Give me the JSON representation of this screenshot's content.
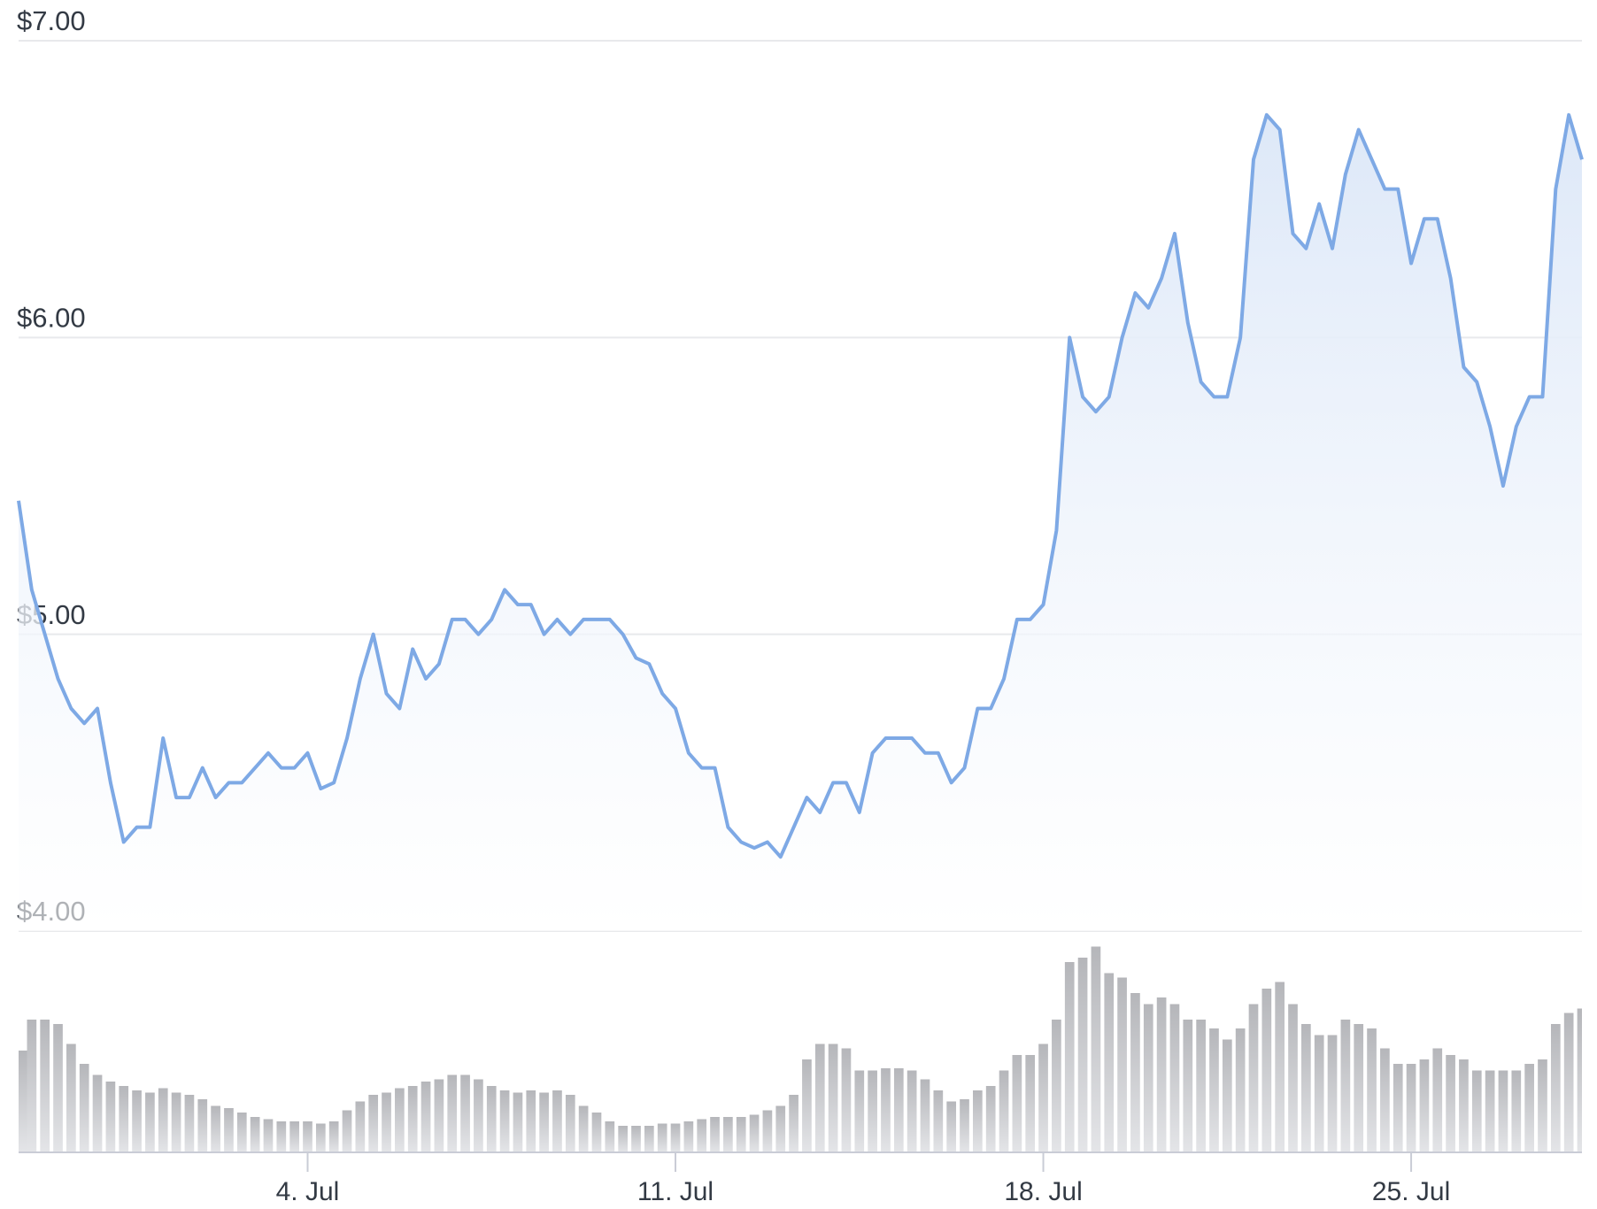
{
  "chart_data": {
    "type": "line",
    "categories": [
      null,
      null,
      null,
      null,
      null,
      null,
      null,
      null,
      null,
      null,
      null,
      null,
      null,
      null,
      null,
      null,
      null,
      null,
      null,
      null,
      null,
      null,
      "4. Jul",
      null,
      null,
      null,
      null,
      null,
      null,
      null,
      null,
      null,
      null,
      null,
      null,
      null,
      null,
      null,
      null,
      null,
      null,
      null,
      null,
      null,
      null,
      null,
      null,
      null,
      null,
      null,
      "11. Jul",
      null,
      null,
      null,
      null,
      null,
      null,
      null,
      null,
      null,
      null,
      null,
      null,
      null,
      null,
      null,
      null,
      null,
      null,
      null,
      null,
      null,
      null,
      null,
      null,
      null,
      null,
      null,
      "18. Jul",
      null,
      null,
      null,
      null,
      null,
      null,
      null,
      null,
      null,
      null,
      null,
      null,
      null,
      null,
      null,
      null,
      null,
      null,
      null,
      null,
      null,
      null,
      null,
      null,
      null,
      null,
      null,
      "25. Jul",
      null,
      null,
      null,
      null,
      null,
      null,
      null,
      null,
      null,
      null,
      null,
      null,
      null
    ],
    "series": [
      {
        "type": "line",
        "color": "#7ea9e5",
        "values": [
          5.45,
          5.15,
          5.0,
          4.85,
          4.75,
          4.7,
          4.75,
          4.5,
          4.3,
          4.35,
          4.35,
          4.65,
          4.45,
          4.45,
          4.55,
          4.45,
          4.5,
          4.5,
          4.55,
          4.6,
          4.55,
          4.55,
          4.6,
          4.48,
          4.5,
          4.65,
          4.85,
          5.0,
          4.8,
          4.75,
          4.95,
          4.85,
          4.9,
          5.05,
          5.05,
          5.0,
          5.05,
          5.15,
          5.1,
          5.1,
          5.0,
          5.05,
          5.0,
          5.05,
          5.05,
          5.05,
          5.0,
          4.92,
          4.9,
          4.8,
          4.75,
          4.6,
          4.55,
          4.55,
          4.35,
          4.3,
          4.28,
          4.3,
          4.25,
          4.35,
          4.45,
          4.4,
          4.5,
          4.5,
          4.4,
          4.6,
          4.65,
          4.65,
          4.65,
          4.6,
          4.6,
          4.5,
          4.55,
          4.75,
          4.75,
          4.85,
          5.05,
          5.05,
          5.1,
          5.35,
          6.0,
          5.8,
          5.75,
          5.8,
          6.0,
          6.15,
          6.1,
          6.2,
          6.35,
          6.05,
          5.85,
          5.8,
          5.8,
          6.0,
          6.6,
          6.75,
          6.7,
          6.35,
          6.3,
          6.45,
          6.3,
          6.55,
          6.7,
          6.6,
          6.5,
          6.5,
          6.25,
          6.4,
          6.4,
          6.2,
          5.9,
          5.85,
          5.7,
          5.5,
          5.7,
          5.8,
          5.8,
          6.5,
          6.75,
          6.6
        ]
      },
      {
        "type": "bar",
        "axis": "y2",
        "color": "#c9cacd",
        "values": [
          46,
          60,
          60,
          58,
          49,
          40,
          35,
          32,
          30,
          28,
          27,
          29,
          27,
          26,
          24,
          21,
          20,
          18,
          16,
          15,
          14,
          14,
          14,
          13,
          14,
          19,
          23,
          26,
          27,
          29,
          30,
          32,
          33,
          35,
          35,
          33,
          30,
          28,
          27,
          28,
          27,
          28,
          26,
          21,
          18,
          14,
          12,
          12,
          12,
          13,
          13,
          14,
          15,
          16,
          16,
          16,
          17,
          19,
          21,
          26,
          42,
          49,
          49,
          47,
          37,
          37,
          38,
          38,
          37,
          33,
          28,
          23,
          24,
          28,
          30,
          37,
          44,
          44,
          49,
          60,
          86,
          88,
          93,
          81,
          79,
          72,
          67,
          70,
          67,
          60,
          60,
          56,
          51,
          56,
          67,
          74,
          77,
          67,
          58,
          53,
          53,
          60,
          58,
          56,
          47,
          40,
          40,
          42,
          47,
          44,
          42,
          37,
          37,
          37,
          37,
          40,
          42,
          58,
          63,
          65
        ]
      }
    ],
    "ylim": [
      4,
      7
    ],
    "yticks": [
      {
        "value": 4,
        "label": "$4.00"
      },
      {
        "value": 5,
        "label": "$5.00"
      },
      {
        "value": 6,
        "label": "$6.00"
      },
      {
        "value": 7,
        "label": "$7.00"
      }
    ],
    "y2lim": [
      0,
      100
    ],
    "grid": true
  }
}
